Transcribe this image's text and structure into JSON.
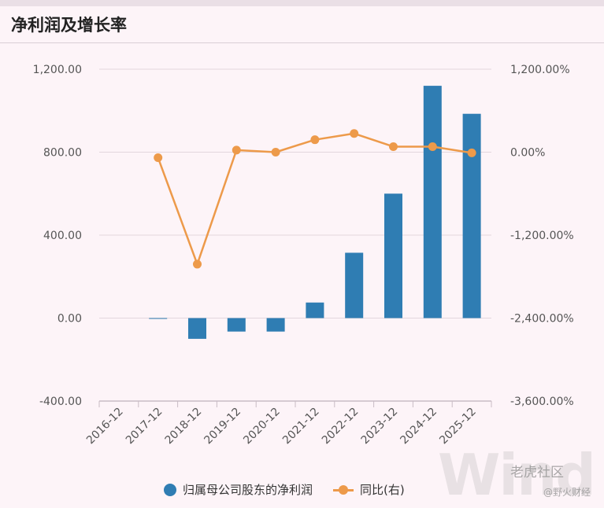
{
  "title": "净利润及增长率",
  "colors": {
    "bar": "#2f7db3",
    "line": "#ed9a4a",
    "grid": "#e2d6dd",
    "axis": "#c9bcc5"
  },
  "chart_data": {
    "type": "bar",
    "categories": [
      "2016-12",
      "2017-12",
      "2018-12",
      "2019-12",
      "2020-12",
      "2021-12",
      "2022-12",
      "2023-12",
      "2024-12",
      "2025-12"
    ],
    "series": [
      {
        "name": "归属母公司股东的净利润",
        "type": "bar",
        "axis": "left",
        "values": [
          null,
          -3,
          -100,
          -65,
          -65,
          75,
          315,
          600,
          1120,
          985
        ]
      },
      {
        "name": "同比(右)",
        "type": "line",
        "axis": "right",
        "values": [
          null,
          -80,
          -1620,
          30,
          0,
          180,
          270,
          80,
          80,
          -10
        ]
      }
    ],
    "yleft": {
      "ticks": [
        "1,200.00",
        "800.00",
        "400.00",
        "0.00",
        "-400.00"
      ],
      "lim": [
        -400,
        1200
      ]
    },
    "yright": {
      "ticks": [
        "1,200.00%",
        "0.00%",
        "-1,200.00%",
        "-2,400.00%",
        "-3,600.00%"
      ],
      "lim": [
        -3600,
        1200
      ]
    },
    "grid": true,
    "legend_position": "bottom"
  },
  "legend": [
    {
      "label": "归属母公司股东的净利润",
      "marker": "dot"
    },
    {
      "label": "同比(右)",
      "marker": "line"
    }
  ],
  "watermark": {
    "main": "Wind",
    "brand": "老虎社区",
    "source": "@野火财经"
  }
}
